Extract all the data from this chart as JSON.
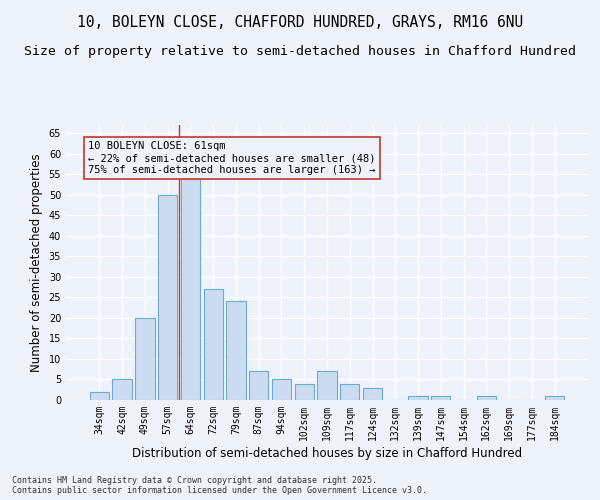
{
  "title1": "10, BOLEYN CLOSE, CHAFFORD HUNDRED, GRAYS, RM16 6NU",
  "title2": "Size of property relative to semi-detached houses in Chafford Hundred",
  "xlabel": "Distribution of semi-detached houses by size in Chafford Hundred",
  "ylabel": "Number of semi-detached properties",
  "categories": [
    "34sqm",
    "42sqm",
    "49sqm",
    "57sqm",
    "64sqm",
    "72sqm",
    "79sqm",
    "87sqm",
    "94sqm",
    "102sqm",
    "109sqm",
    "117sqm",
    "124sqm",
    "132sqm",
    "139sqm",
    "147sqm",
    "154sqm",
    "162sqm",
    "169sqm",
    "177sqm",
    "184sqm"
  ],
  "values": [
    2,
    5,
    20,
    50,
    54,
    27,
    24,
    7,
    5,
    4,
    7,
    4,
    3,
    0,
    1,
    1,
    0,
    1,
    0,
    0,
    1
  ],
  "bar_color": "#ccdcf0",
  "bar_edge_color": "#6aaad4",
  "red_line_x": 3.5,
  "annotation_box_text": "10 BOLEYN CLOSE: 61sqm\n← 22% of semi-detached houses are smaller (48)\n75% of semi-detached houses are larger (163) →",
  "annotation_box_edge_color": "#c0392b",
  "ylim": [
    0,
    67
  ],
  "yticks": [
    0,
    5,
    10,
    15,
    20,
    25,
    30,
    35,
    40,
    45,
    50,
    55,
    60,
    65
  ],
  "background_color": "#eef2fa",
  "grid_color": "#ffffff",
  "footer": "Contains HM Land Registry data © Crown copyright and database right 2025.\nContains public sector information licensed under the Open Government Licence v3.0.",
  "title_fontsize": 10.5,
  "subtitle_fontsize": 9.5,
  "tick_fontsize": 7,
  "ylabel_fontsize": 8.5,
  "xlabel_fontsize": 8.5,
  "annotation_fontsize": 7.5,
  "footer_fontsize": 6
}
